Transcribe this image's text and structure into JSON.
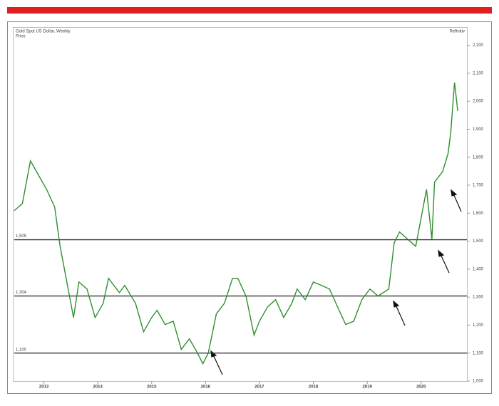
{
  "chart_data": {
    "type": "line",
    "title": "Gold Spot US Dollar, Weekly",
    "ylabel": "Price",
    "source": "Refinitiv",
    "x": [
      2012.45,
      2012.6,
      2012.75,
      2012.9,
      2013.05,
      2013.2,
      2013.3,
      2013.45,
      2013.55,
      2013.65,
      2013.8,
      2013.95,
      2014.1,
      2014.2,
      2014.4,
      2014.5,
      2014.7,
      2014.85,
      2015.0,
      2015.1,
      2015.25,
      2015.4,
      2015.55,
      2015.7,
      2015.85,
      2015.95,
      2016.05,
      2016.2,
      2016.35,
      2016.5,
      2016.6,
      2016.75,
      2016.9,
      2017.0,
      2017.15,
      2017.3,
      2017.45,
      2017.6,
      2017.7,
      2017.85,
      2018.0,
      2018.15,
      2018.3,
      2018.45,
      2018.6,
      2018.75,
      2018.9,
      2019.05,
      2019.2,
      2019.4,
      2019.5,
      2019.6,
      2019.75,
      2019.9,
      2020.0,
      2020.1,
      2020.2,
      2020.25,
      2020.4,
      2020.5,
      2020.55,
      2020.62,
      2020.68
    ],
    "series": [
      {
        "name": "Gold",
        "color": "#2f8f2f",
        "values": [
          1609,
          1634,
          1787,
          1736,
          1685,
          1622,
          1482,
          1329,
          1227,
          1354,
          1329,
          1227,
          1278,
          1367,
          1316,
          1342,
          1278,
          1176,
          1227,
          1253,
          1202,
          1214,
          1113,
          1151,
          1100,
          1062,
          1100,
          1240,
          1278,
          1367,
          1367,
          1304,
          1164,
          1214,
          1265,
          1291,
          1227,
          1278,
          1329,
          1291,
          1354,
          1342,
          1329,
          1265,
          1202,
          1214,
          1291,
          1329,
          1304,
          1329,
          1494,
          1533,
          1507,
          1482,
          1583,
          1685,
          1507,
          1711,
          1749,
          1813,
          1889,
          2067,
          1965
        ]
      }
    ],
    "xlim": [
      2012.45,
      2020.85
    ],
    "xticks": [
      2013,
      2014,
      2015,
      2016,
      2017,
      2018,
      2019,
      2020
    ],
    "ylim": [
      1000,
      2260
    ],
    "yticks": [
      {
        "value": 1000,
        "label": "1,000"
      },
      {
        "value": 1100,
        "label": "1,100"
      },
      {
        "value": 1200,
        "label": "1,200"
      },
      {
        "value": 1300,
        "label": "1,300"
      },
      {
        "value": 1400,
        "label": "1,400"
      },
      {
        "value": 1500,
        "label": "1,500"
      },
      {
        "value": 1600,
        "label": "1,600"
      },
      {
        "value": 1700,
        "label": "1,700"
      },
      {
        "value": 1800,
        "label": "1,800"
      },
      {
        "value": 1900,
        "label": "1,900"
      },
      {
        "value": 2000,
        "label": "2,000"
      },
      {
        "value": 2100,
        "label": "2,100"
      },
      {
        "value": 2200,
        "label": "2,200"
      }
    ],
    "levels": [
      {
        "value": 1505,
        "label": "1,505"
      },
      {
        "value": 1304,
        "label": "1,304"
      },
      {
        "value": 1100,
        "label": "1,100"
      }
    ]
  }
}
